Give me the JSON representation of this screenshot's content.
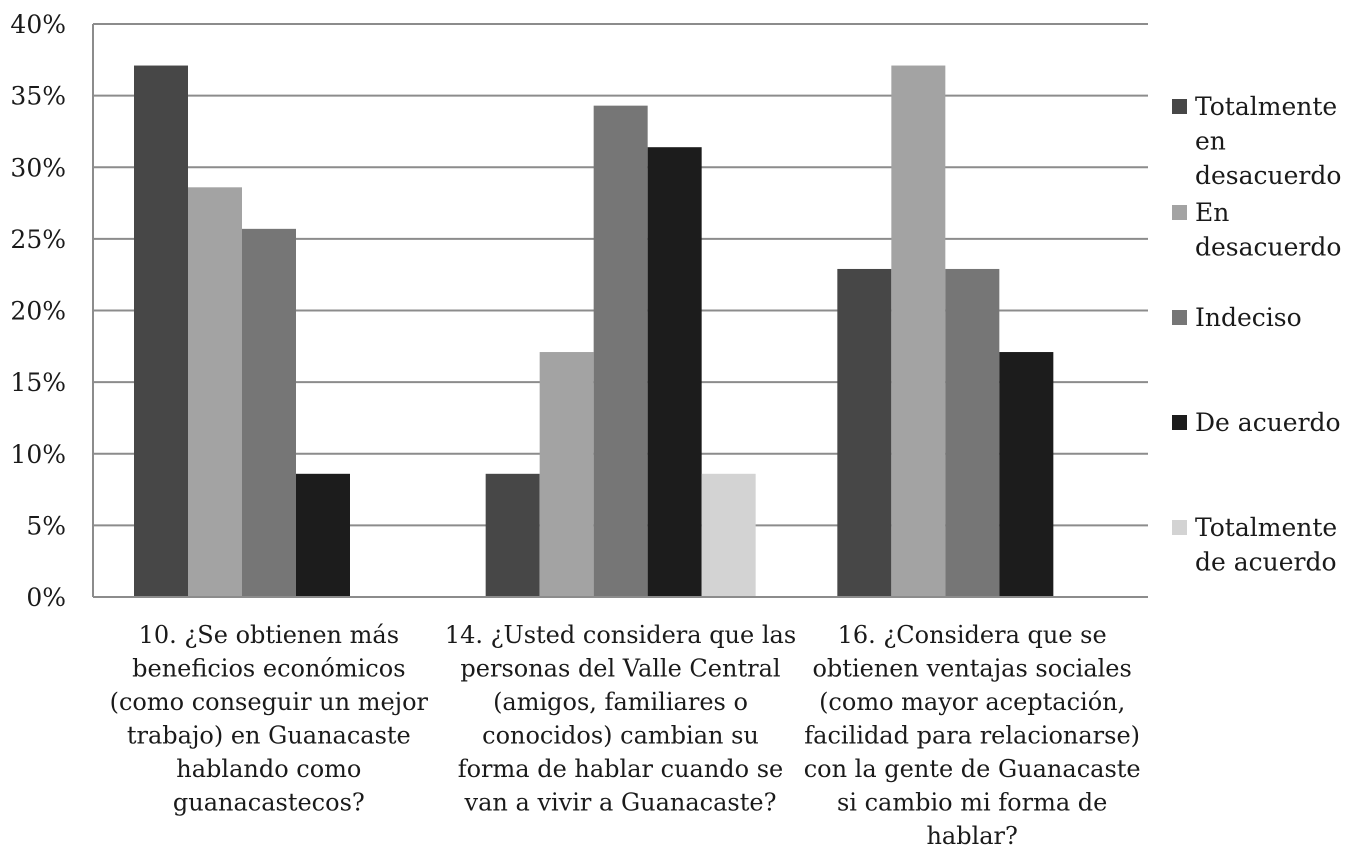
{
  "chart_data": {
    "type": "bar",
    "categories": [
      "10. ¿Se obtienen más beneficios económicos (como conseguir un mejor trabajo) en Guanacaste hablando como guanacastecos?",
      "14. ¿Usted considera que las personas del Valle Central (amigos, familiares o conocidos)  cambian su forma de hablar cuando se van a vivir a Guanacaste?",
      "16. ¿Considera que se obtienen ventajas sociales (como mayor aceptación, facilidad para relacionarse) con la gente de Guanacaste si cambio mi forma de hablar?"
    ],
    "category_label_lines": [
      [
        "10. ¿Se obtienen más",
        "beneficios económicos",
        "(como conseguir un mejor",
        "trabajo) en Guanacaste",
        "hablando como",
        "guanacastecos?"
      ],
      [
        "14. ¿Usted considera que las",
        "personas del Valle Central",
        "(amigos, familiares o",
        "conocidos)  cambian su",
        "forma de hablar cuando se",
        "van a vivir a Guanacaste?"
      ],
      [
        "16. ¿Considera que se",
        "obtienen ventajas sociales",
        "(como mayor aceptación,",
        "facilidad para relacionarse)",
        "con la gente de Guanacaste",
        "si cambio mi forma de",
        "hablar?"
      ]
    ],
    "series": [
      {
        "name": "Totalmente en desacuerdo",
        "legend_lines": [
          "Totalmente",
          "en",
          "desacuerdo"
        ],
        "color": "#474747",
        "values": [
          37.1,
          8.6,
          22.9
        ]
      },
      {
        "name": "En desacuerdo",
        "legend_lines": [
          "En",
          "desacuerdo"
        ],
        "color": "#a3a3a3",
        "values": [
          28.6,
          17.1,
          37.1
        ]
      },
      {
        "name": "Indeciso",
        "legend_lines": [
          "Indeciso"
        ],
        "color": "#767676",
        "values": [
          25.7,
          34.3,
          22.9
        ]
      },
      {
        "name": "De acuerdo",
        "legend_lines": [
          "De acuerdo"
        ],
        "color": "#1c1c1c",
        "values": [
          8.6,
          31.4,
          17.1
        ]
      },
      {
        "name": "Totalmente de acuerdo",
        "legend_lines": [
          "Totalmente",
          "de acuerdo"
        ],
        "color": "#d3d3d3",
        "values": [
          0,
          8.6,
          0
        ]
      }
    ],
    "y_ticks": [
      "0%",
      "5%",
      "10%",
      "15%",
      "20%",
      "25%",
      "30%",
      "35%",
      "40%"
    ],
    "ylim": [
      0,
      40
    ],
    "y_unit": "%",
    "grid": true,
    "legend_position": "right",
    "title": "",
    "xlabel": "",
    "ylabel": ""
  }
}
